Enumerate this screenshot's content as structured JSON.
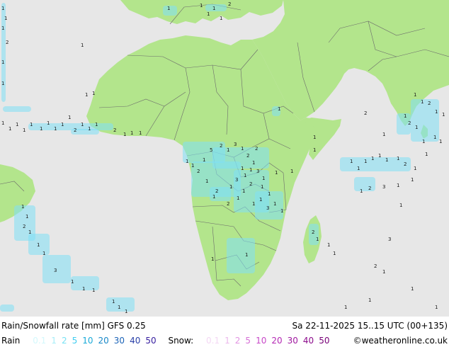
{
  "title": "Rain/Snowfall rate [mm] GFS 0.25",
  "datetime": "Sa 22-11-2025 15..15 UTC (00+135)",
  "credit": "©weatheronline.co.uk",
  "legend": {
    "rain_label": "Rain",
    "rain_values": [
      "0.1",
      "1",
      "2",
      "5",
      "10",
      "20",
      "30",
      "40",
      "50"
    ],
    "rain_colors": [
      "#d4f8fc",
      "#a8eef8",
      "#78e2f4",
      "#40cdf0",
      "#1aaad8",
      "#1888c8",
      "#1c64b8",
      "#2a40a8",
      "#3820a0"
    ],
    "snow_label": "Snow:",
    "snow_values": [
      "0.1",
      "1",
      "2",
      "5",
      "10",
      "20",
      "30",
      "40",
      "50"
    ],
    "snow_colors": [
      "#f4d8f4",
      "#ecb8ec",
      "#e294e2",
      "#d670d6",
      "#c848c8",
      "#b428b4",
      "#a018a0",
      "#8c0c8c",
      "#780078"
    ]
  },
  "colors": {
    "land": "#b3e58c",
    "sea": "#e7e7e7",
    "border": "#6b6b6b",
    "rain": "#7fe0f5"
  },
  "precip_labels": [
    {
      "t": "1"
    },
    {
      "t": "1"
    },
    {
      "t": "1"
    },
    {
      "t": "2"
    },
    {
      "t": "1"
    },
    {
      "t": "1"
    },
    {
      "t": "1"
    },
    {
      "t": "1"
    },
    {
      "t": "1"
    },
    {
      "t": "1"
    },
    {
      "t": "1"
    },
    {
      "t": "1"
    },
    {
      "t": "1"
    },
    {
      "t": "1"
    },
    {
      "t": "1"
    },
    {
      "t": "1"
    },
    {
      "t": "2"
    },
    {
      "t": "1"
    },
    {
      "t": "1"
    },
    {
      "t": "1"
    },
    {
      "t": "2"
    },
    {
      "t": "1"
    },
    {
      "t": "1"
    },
    {
      "t": "1"
    },
    {
      "t": "1"
    },
    {
      "t": "1"
    },
    {
      "t": "1"
    },
    {
      "t": "1"
    },
    {
      "t": "1"
    },
    {
      "t": "1"
    },
    {
      "t": "1"
    },
    {
      "t": "1"
    },
    {
      "t": "2"
    },
    {
      "t": "1"
    },
    {
      "t": "1"
    },
    {
      "t": "2"
    },
    {
      "t": "1"
    },
    {
      "t": "1"
    },
    {
      "t": "5"
    },
    {
      "t": "2"
    },
    {
      "t": "1"
    },
    {
      "t": "3"
    },
    {
      "t": "1"
    },
    {
      "t": "2"
    },
    {
      "t": "1"
    },
    {
      "t": "3"
    },
    {
      "t": "1"
    },
    {
      "t": "2"
    },
    {
      "t": "1"
    },
    {
      "t": "1"
    },
    {
      "t": "2"
    },
    {
      "t": "1"
    },
    {
      "t": "1"
    },
    {
      "t": "3"
    },
    {
      "t": "1"
    },
    {
      "t": "1"
    },
    {
      "t": "1"
    },
    {
      "t": "1"
    },
    {
      "t": "2"
    },
    {
      "t": "1"
    },
    {
      "t": "1"
    },
    {
      "t": "2"
    },
    {
      "t": "1"
    },
    {
      "t": "3"
    },
    {
      "t": "1"
    },
    {
      "t": "1"
    },
    {
      "t": "1"
    },
    {
      "t": "1"
    },
    {
      "t": "1"
    },
    {
      "t": "1"
    },
    {
      "t": "1"
    },
    {
      "t": "1"
    },
    {
      "t": "1"
    },
    {
      "t": "2"
    },
    {
      "t": "1"
    },
    {
      "t": "1"
    },
    {
      "t": "1"
    },
    {
      "t": "1"
    },
    {
      "t": "1"
    },
    {
      "t": "1"
    },
    {
      "t": "1"
    },
    {
      "t": "1"
    },
    {
      "t": "2"
    },
    {
      "t": "1"
    },
    {
      "t": "1"
    },
    {
      "t": "1"
    },
    {
      "t": "3"
    },
    {
      "t": "2"
    },
    {
      "t": "1"
    },
    {
      "t": "1"
    },
    {
      "t": "1"
    },
    {
      "t": "2"
    },
    {
      "t": "1"
    },
    {
      "t": "1"
    },
    {
      "t": "1"
    },
    {
      "t": "1"
    },
    {
      "t": "1"
    },
    {
      "t": "1"
    },
    {
      "t": "2"
    },
    {
      "t": "1"
    },
    {
      "t": "1"
    },
    {
      "t": "1"
    },
    {
      "t": "2"
    },
    {
      "t": "1"
    },
    {
      "t": "1"
    },
    {
      "t": "1"
    },
    {
      "t": "3"
    },
    {
      "t": "1"
    },
    {
      "t": "1"
    },
    {
      "t": "1"
    },
    {
      "t": "1"
    },
    {
      "t": "1"
    },
    {
      "t": "1"
    },
    {
      "t": "2"
    },
    {
      "t": "1"
    },
    {
      "t": "1"
    },
    {
      "t": "1"
    },
    {
      "t": "3"
    },
    {
      "t": "2"
    },
    {
      "t": "1"
    },
    {
      "t": "1"
    },
    {
      "t": "1"
    },
    {
      "t": "1"
    },
    {
      "t": "1"
    },
    {
      "t": "1"
    },
    {
      "t": "1"
    }
  ]
}
